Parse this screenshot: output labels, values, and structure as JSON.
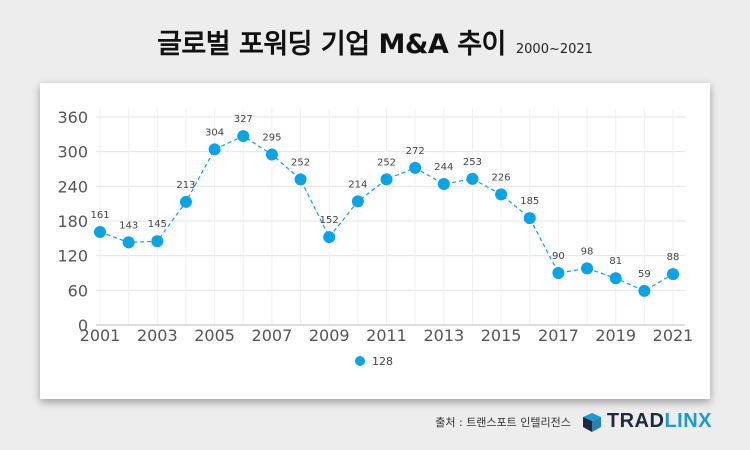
{
  "header": {
    "title": "글로벌 포워딩 기업 M&A 추이",
    "subtitle": "2000~2021"
  },
  "footer": {
    "source": "출처 : 트랜스포트 인텔리전스",
    "logo_part1": "TRAD",
    "logo_part2": "LINX"
  },
  "chart_data": {
    "type": "line",
    "title": "글로벌 포워딩 기업 M&A 추이",
    "subtitle": "2000~2021",
    "x": [
      2001,
      2002,
      2003,
      2004,
      2005,
      2006,
      2007,
      2008,
      2009,
      2010,
      2011,
      2012,
      2013,
      2014,
      2015,
      2016,
      2017,
      2018,
      2019,
      2020,
      2021
    ],
    "x_tick_labels": [
      "2001",
      "2003",
      "2005",
      "2007",
      "2009",
      "2011",
      "2013",
      "2015",
      "2017",
      "2019",
      "2021"
    ],
    "y_tick_labels": [
      "0",
      "60",
      "120",
      "180",
      "240",
      "300",
      "360"
    ],
    "ylim": [
      0,
      360
    ],
    "series": [
      {
        "name": "128",
        "values": [
          161,
          143,
          145,
          213,
          304,
          327,
          295,
          252,
          152,
          214,
          252,
          272,
          244,
          253,
          226,
          185,
          90,
          98,
          81,
          59,
          88
        ],
        "color": "#0aa3e6",
        "line_style": "dashed"
      }
    ],
    "data_labels": true,
    "grid": true,
    "legend_position": "bottom-center"
  }
}
